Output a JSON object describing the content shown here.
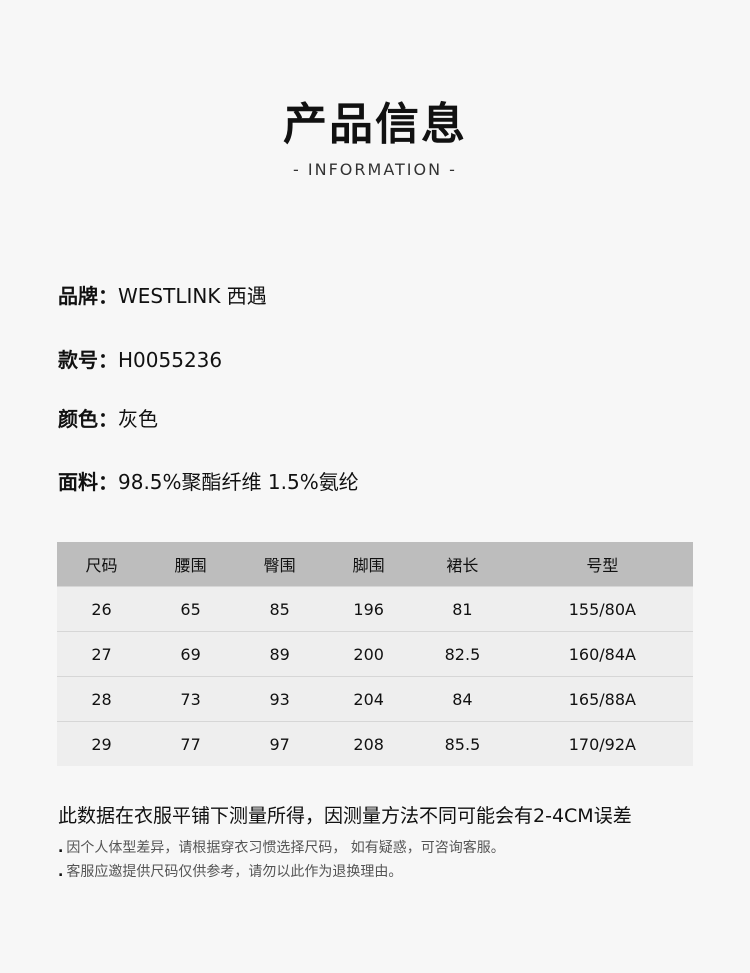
{
  "header": {
    "title": "产品信息",
    "subtitle": "- INFORMATION -"
  },
  "info": [
    {
      "label": "品牌：",
      "value": "WESTLINK 西遇"
    },
    {
      "label": "款号：",
      "value": "H0055236"
    },
    {
      "label": "颜色：",
      "value": "灰色"
    },
    {
      "label": "面料：",
      "value": "98.5%聚酯纤维 1.5%氨纶"
    }
  ],
  "size_table": {
    "headers": [
      "尺码",
      "腰围",
      "臀围",
      "脚围",
      "裙长",
      "号型"
    ],
    "rows": [
      [
        "26",
        "65",
        "85",
        "196",
        "81",
        "155/80A"
      ],
      [
        "27",
        "69",
        "89",
        "200",
        "82.5",
        "160/84A"
      ],
      [
        "28",
        "73",
        "93",
        "204",
        "84",
        "165/88A"
      ],
      [
        "29",
        "77",
        "97",
        "208",
        "85.5",
        "170/92A"
      ]
    ]
  },
  "notes": {
    "title": "此数据在衣服平铺下测量所得，因测量方法不同可能会有2-4CM误差",
    "items": [
      "因个人体型差异，请根据穿衣习惯选择尺码， 如有疑惑，可咨询客服。",
      "客服应邀提供尺码仅供参考，请勿以此作为退换理由。"
    ]
  }
}
